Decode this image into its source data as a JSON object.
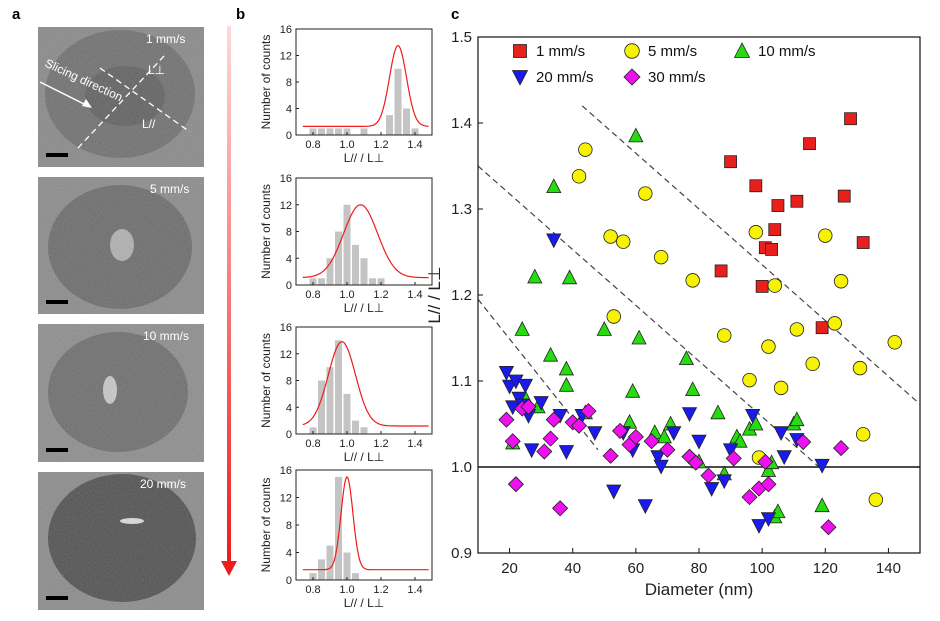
{
  "panel_labels": [
    "a",
    "b",
    "c"
  ],
  "panel_a": {
    "images": [
      {
        "speed": "1 mm/s"
      },
      {
        "speed": "5 mm/s"
      },
      {
        "speed": "10 mm/s"
      },
      {
        "speed": "20 mm/s"
      }
    ],
    "annotation_slicing": "Slicing direction",
    "annotation_perp": "L⊥",
    "annotation_par": "L//"
  },
  "chart_data": [
    {
      "type": "bar",
      "panel": "b",
      "title": "",
      "xlabel": "L// / L⊥",
      "ylabel": "Number of counts",
      "bin_centers": [
        0.75,
        0.8,
        0.85,
        0.9,
        0.95,
        1.0,
        1.05,
        1.1,
        1.15,
        1.2,
        1.25,
        1.3,
        1.35,
        1.4,
        1.45
      ],
      "xticks": [
        "0.8",
        "1.0",
        "1.2",
        "1.4"
      ],
      "ylim": [
        0,
        16
      ],
      "yticks": [
        "0",
        "4",
        "8",
        "12",
        "16"
      ],
      "histograms": [
        {
          "values": [
            0,
            1,
            1,
            1,
            1,
            1,
            0,
            1,
            0,
            0,
            3,
            10,
            4,
            1,
            0
          ],
          "fit": {
            "mean": 1.3,
            "sigma": 0.05,
            "peak": 13.5,
            "base": 1.3
          }
        },
        {
          "values": [
            0,
            1,
            1,
            4,
            8,
            12,
            6,
            4,
            1,
            1,
            0,
            0,
            0,
            0,
            0
          ],
          "fit": {
            "mean": 1.08,
            "sigma": 0.1,
            "peak": 12.0,
            "base": 1.1
          }
        },
        {
          "values": [
            0,
            1,
            8,
            10,
            14,
            6,
            2,
            1,
            0,
            0,
            0,
            0,
            0,
            0,
            0
          ],
          "fit": {
            "mean": 0.97,
            "sigma": 0.08,
            "peak": 13.8,
            "base": 1.2
          }
        },
        {
          "values": [
            0,
            1,
            3,
            5,
            15,
            4,
            1,
            0,
            0,
            0,
            0,
            0,
            0,
            0,
            0
          ],
          "fit": {
            "mean": 1.0,
            "sigma": 0.035,
            "peak": 15.0,
            "base": 1.5
          }
        }
      ]
    },
    {
      "type": "scatter",
      "panel": "c",
      "title": "",
      "xlabel": "Diameter (nm)",
      "ylabel": "L// / L⊥",
      "xlim": [
        10,
        150
      ],
      "ylim": [
        0.9,
        1.5
      ],
      "xticks": [
        "20",
        "40",
        "60",
        "80",
        "100",
        "120",
        "140"
      ],
      "yticks": [
        "0.9",
        "1.0",
        "1.1",
        "1.2",
        "1.3",
        "1.4",
        "1.5"
      ],
      "reference_line": 1.0,
      "guide_lines": [
        {
          "x": [
            10,
            48
          ],
          "y": [
            1.195,
            1.02
          ]
        },
        {
          "x": [
            10,
            118
          ],
          "y": [
            1.35,
            1.0
          ]
        },
        {
          "x": [
            43,
            150
          ],
          "y": [
            1.42,
            1.073
          ]
        }
      ],
      "series": [
        {
          "name": "1 mm/s",
          "marker": "square",
          "color": "#e8201c",
          "points": [
            [
              87,
              1.228
            ],
            [
              90,
              1.355
            ],
            [
              98,
              1.327
            ],
            [
              100,
              1.21
            ],
            [
              101,
              1.255
            ],
            [
              103,
              1.253
            ],
            [
              104,
              1.276
            ],
            [
              105,
              1.304
            ],
            [
              111,
              1.309
            ],
            [
              115,
              1.376
            ],
            [
              119,
              1.162
            ],
            [
              126,
              1.315
            ],
            [
              128,
              1.405
            ],
            [
              132,
              1.261
            ]
          ]
        },
        {
          "name": "5 mm/s",
          "marker": "circle",
          "color": "#f7f200",
          "points": [
            [
              42,
              1.338
            ],
            [
              44,
              1.369
            ],
            [
              52,
              1.268
            ],
            [
              53,
              1.175
            ],
            [
              56,
              1.262
            ],
            [
              63,
              1.318
            ],
            [
              68,
              1.244
            ],
            [
              78,
              1.217
            ],
            [
              88,
              1.153
            ],
            [
              96,
              1.101
            ],
            [
              98,
              1.273
            ],
            [
              99,
              1.011
            ],
            [
              102,
              1.14
            ],
            [
              104,
              1.211
            ],
            [
              106,
              1.092
            ],
            [
              111,
              1.16
            ],
            [
              116,
              1.12
            ],
            [
              120,
              1.269
            ],
            [
              123,
              1.167
            ],
            [
              125,
              1.216
            ],
            [
              131,
              1.115
            ],
            [
              132,
              1.038
            ],
            [
              136,
              0.962
            ],
            [
              142,
              1.145
            ]
          ]
        },
        {
          "name": "10 mm/s",
          "marker": "triangle-up",
          "color": "#26dc10",
          "points": [
            [
              21,
              1.028
            ],
            [
              24,
              1.16
            ],
            [
              25,
              1.08
            ],
            [
              28,
              1.221
            ],
            [
              29,
              1.07
            ],
            [
              33,
              1.13
            ],
            [
              34,
              1.326
            ],
            [
              38,
              1.114
            ],
            [
              38,
              1.095
            ],
            [
              39,
              1.22
            ],
            [
              44,
              1.063
            ],
            [
              50,
              1.16
            ],
            [
              58,
              1.052
            ],
            [
              59,
              1.088
            ],
            [
              60,
              1.385
            ],
            [
              61,
              1.15
            ],
            [
              66,
              1.04
            ],
            [
              69,
              1.035
            ],
            [
              71,
              1.05
            ],
            [
              76,
              1.126
            ],
            [
              78,
              1.09
            ],
            [
              80,
              1.006
            ],
            [
              86,
              1.063
            ],
            [
              88,
              0.992
            ],
            [
              92,
              1.035
            ],
            [
              93,
              1.03
            ],
            [
              96,
              1.044
            ],
            [
              98,
              1.05
            ],
            [
              102,
              0.996
            ],
            [
              103,
              1.005
            ],
            [
              104,
              0.942
            ],
            [
              105,
              0.948
            ],
            [
              110,
              1.05
            ],
            [
              111,
              1.055
            ],
            [
              119,
              0.955
            ]
          ]
        },
        {
          "name": "20 mm/s",
          "marker": "triangle-down",
          "color": "#1a1aee",
          "points": [
            [
              19,
              1.11
            ],
            [
              20,
              1.094
            ],
            [
              21,
              1.07
            ],
            [
              22,
              1.1
            ],
            [
              23,
              1.08
            ],
            [
              24,
              1.072
            ],
            [
              25,
              1.095
            ],
            [
              26,
              1.06
            ],
            [
              27,
              1.02
            ],
            [
              30,
              1.075
            ],
            [
              34,
              1.264
            ],
            [
              36,
              1.06
            ],
            [
              38,
              1.018
            ],
            [
              43,
              1.06
            ],
            [
              47,
              1.04
            ],
            [
              53,
              0.972
            ],
            [
              56,
              1.04
            ],
            [
              59,
              1.02
            ],
            [
              63,
              0.955
            ],
            [
              67,
              1.012
            ],
            [
              68,
              1.001
            ],
            [
              72,
              1.04
            ],
            [
              77,
              1.062
            ],
            [
              80,
              1.03
            ],
            [
              84,
              0.975
            ],
            [
              88,
              0.984
            ],
            [
              90,
              1.02
            ],
            [
              97,
              1.06
            ],
            [
              99,
              0.932
            ],
            [
              102,
              0.94
            ],
            [
              106,
              1.04
            ],
            [
              107,
              1.012
            ],
            [
              111,
              1.032
            ],
            [
              119,
              1.002
            ]
          ]
        },
        {
          "name": "30 mm/s",
          "marker": "diamond",
          "color": "#ee10ee",
          "points": [
            [
              19,
              1.055
            ],
            [
              21,
              1.03
            ],
            [
              22,
              0.98
            ],
            [
              24,
              1.068
            ],
            [
              26,
              1.07
            ],
            [
              31,
              1.018
            ],
            [
              33,
              1.033
            ],
            [
              34,
              1.055
            ],
            [
              36,
              0.952
            ],
            [
              40,
              1.052
            ],
            [
              42,
              1.048
            ],
            [
              45,
              1.065
            ],
            [
              52,
              1.013
            ],
            [
              55,
              1.042
            ],
            [
              58,
              1.026
            ],
            [
              60,
              1.035
            ],
            [
              65,
              1.03
            ],
            [
              70,
              1.02
            ],
            [
              77,
              1.012
            ],
            [
              79,
              1.005
            ],
            [
              83,
              0.99
            ],
            [
              91,
              1.01
            ],
            [
              96,
              0.965
            ],
            [
              99,
              0.975
            ],
            [
              101,
              1.006
            ],
            [
              102,
              0.98
            ],
            [
              113,
              1.029
            ],
            [
              121,
              0.93
            ],
            [
              125,
              1.022
            ]
          ]
        }
      ],
      "legend": {
        "placement": "top-left",
        "rows": [
          [
            "1 mm/s",
            "5 mm/s",
            "10 mm/s"
          ],
          [
            "20 mm/s",
            "30 mm/s"
          ]
        ]
      }
    }
  ],
  "colors": {
    "fit_line": "#ee1c1c",
    "bar": "#c4c4c4",
    "arrow": "#ee1c1c",
    "dashed_guides": "#444444"
  }
}
